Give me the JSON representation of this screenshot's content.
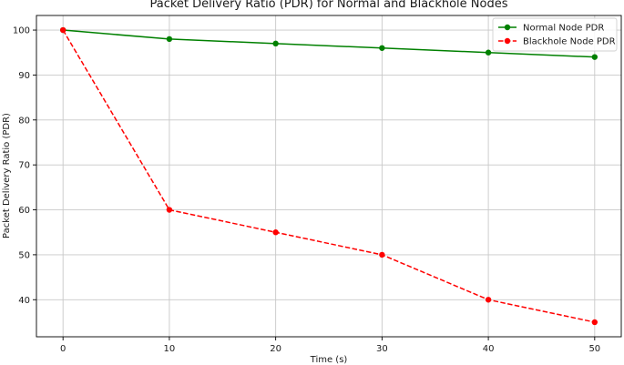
{
  "chart_data": {
    "type": "line",
    "title": "Packet Delivery Ratio (PDR) for Normal and Blackhole Nodes",
    "xlabel": "Time (s)",
    "ylabel": "Packet Delivery Ratio (PDR)",
    "x": [
      0,
      10,
      20,
      30,
      40,
      50
    ],
    "xticks": [
      0,
      10,
      20,
      30,
      40,
      50
    ],
    "yticks": [
      40,
      50,
      60,
      70,
      80,
      90,
      100
    ],
    "xlim": [
      -2.5,
      52.5
    ],
    "ylim": [
      31.75,
      103.25
    ],
    "grid": true,
    "legend_position": "top-right",
    "series": [
      {
        "name": "Normal Node PDR",
        "values": [
          100,
          98,
          97,
          96,
          95,
          94
        ],
        "color": "#008000",
        "linestyle": "solid",
        "marker": "circle"
      },
      {
        "name": "Blackhole Node PDR",
        "values": [
          100,
          60,
          55,
          50,
          40,
          35
        ],
        "color": "#ff0000",
        "linestyle": "dashed",
        "marker": "circle"
      }
    ]
  }
}
